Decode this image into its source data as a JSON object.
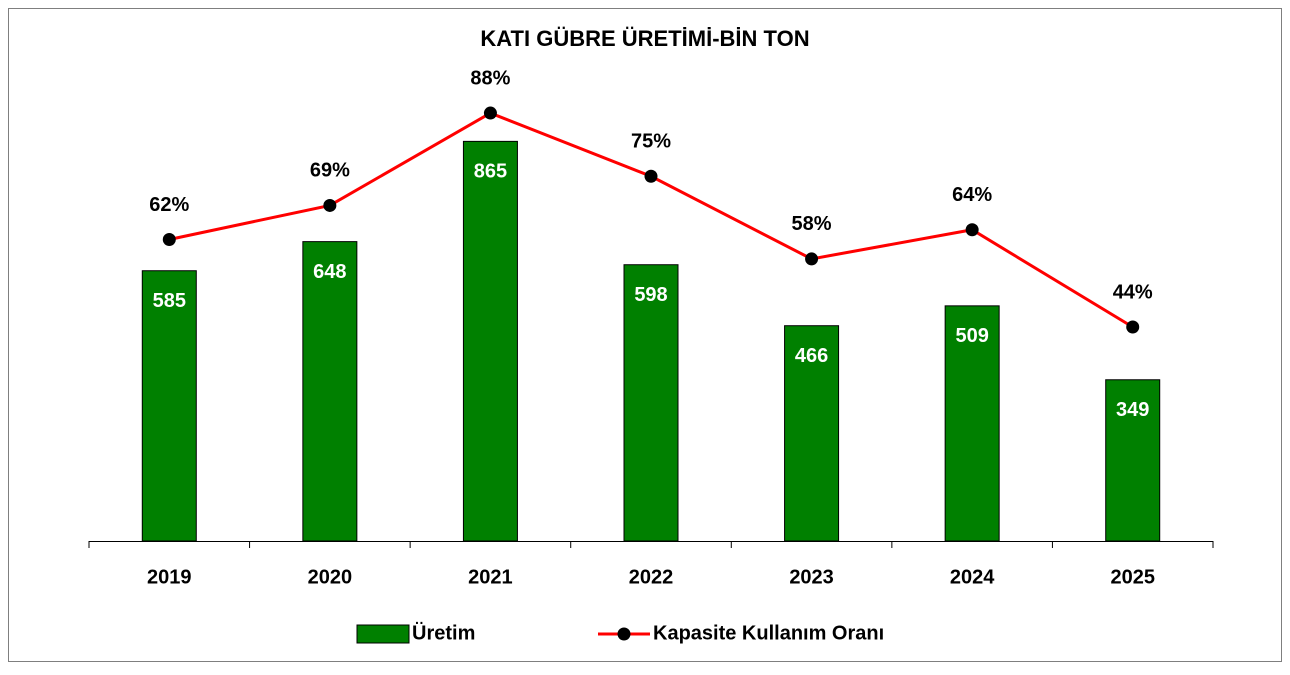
{
  "chart_data": {
    "type": "bar",
    "title": "KATI GÜBRE ÜRETİMİ-BİN TON",
    "categories": [
      "2019",
      "2020",
      "2021",
      "2022",
      "2023",
      "2024",
      "2025"
    ],
    "ylim": [
      0,
      1000
    ],
    "y2lim": [
      0,
      95
    ],
    "legend": "bottom",
    "series": [
      {
        "name": "Üretim",
        "type": "bar",
        "color": "#008000",
        "values": [
          585,
          648,
          865,
          598,
          466,
          509,
          349
        ]
      },
      {
        "name": "Kapasite Kullanım Oranı",
        "type": "line",
        "axis": "y2",
        "color": "#ff0000",
        "marker_color": "#000000",
        "values": [
          62,
          69,
          88,
          75,
          58,
          64,
          44
        ],
        "value_labels": [
          "62%",
          "69%",
          "88%",
          "75%",
          "58%",
          "64%",
          "44%"
        ]
      }
    ]
  }
}
